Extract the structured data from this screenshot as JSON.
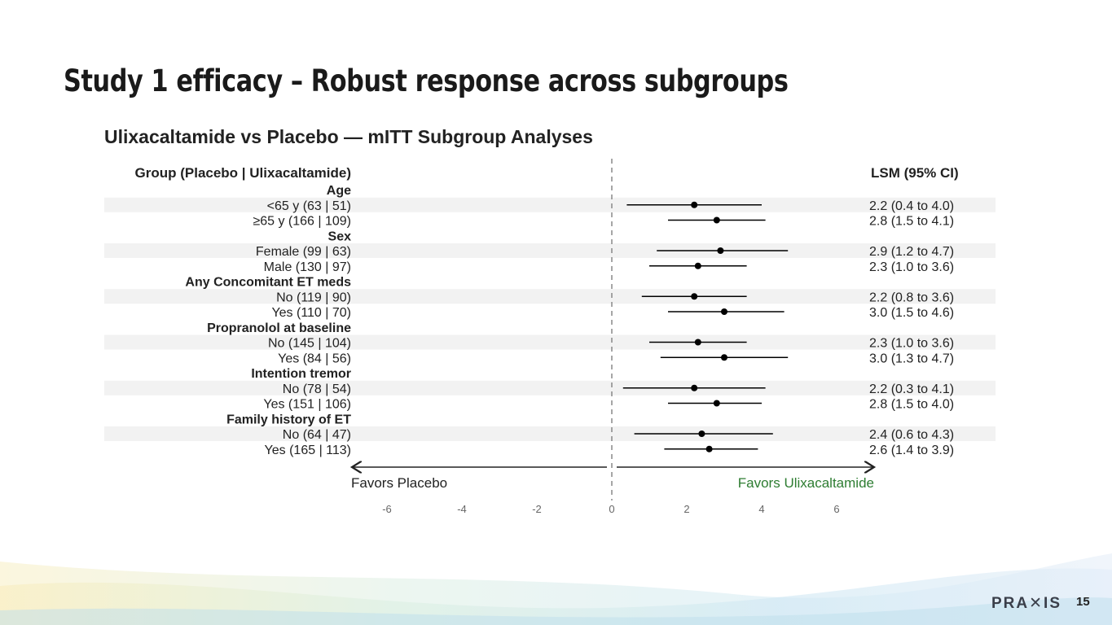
{
  "slide_title": "Study 1 efficacy – Robust response across subgroups",
  "page_number": "15",
  "logo": "PRAXIS",
  "chart_data": {
    "type": "forest",
    "title": "Ulixacaltamide vs Placebo — mITT Subgroup Analyses",
    "left_header": "Group (Placebo | Ulixacaltamide)",
    "right_header": "LSM (95% CI)",
    "xlim": [
      -7,
      7
    ],
    "xticks": [
      "-6",
      "-4",
      "-2",
      "0",
      "2",
      "4",
      "6"
    ],
    "reference_line": 0,
    "favors_left": "Favors Placebo",
    "favors_right": "Favors Ulixacaltamide",
    "colors": {
      "favors_right": "#2e7d32",
      "points": "#000000",
      "stripe": "#f2f2f2"
    },
    "groups": [
      {
        "name": "Age",
        "rows": [
          {
            "label": "<65 y  (63 | 51)",
            "est": 2.2,
            "lo": 0.4,
            "hi": 4.0,
            "ci_text": "2.2 (0.4 to 4.0)"
          },
          {
            "label": "≥65 y  (166 | 109)",
            "est": 2.8,
            "lo": 1.5,
            "hi": 4.1,
            "ci_text": "2.8 (1.5 to 4.1)"
          }
        ]
      },
      {
        "name": "Sex",
        "rows": [
          {
            "label": "Female  (99 | 63)",
            "est": 2.9,
            "lo": 1.2,
            "hi": 4.7,
            "ci_text": "2.9 (1.2 to 4.7)"
          },
          {
            "label": "Male  (130 | 97)",
            "est": 2.3,
            "lo": 1.0,
            "hi": 3.6,
            "ci_text": "2.3 (1.0 to 3.6)"
          }
        ]
      },
      {
        "name": "Any Concomitant ET meds",
        "rows": [
          {
            "label": "No  (119 | 90)",
            "est": 2.2,
            "lo": 0.8,
            "hi": 3.6,
            "ci_text": "2.2 (0.8 to 3.6)"
          },
          {
            "label": "Yes  (110 | 70)",
            "est": 3.0,
            "lo": 1.5,
            "hi": 4.6,
            "ci_text": "3.0 (1.5 to 4.6)"
          }
        ]
      },
      {
        "name": "Propranolol at baseline",
        "rows": [
          {
            "label": "No  (145 | 104)",
            "est": 2.3,
            "lo": 1.0,
            "hi": 3.6,
            "ci_text": "2.3 (1.0 to 3.6)"
          },
          {
            "label": "Yes  (84 | 56)",
            "est": 3.0,
            "lo": 1.3,
            "hi": 4.7,
            "ci_text": "3.0 (1.3 to 4.7)"
          }
        ]
      },
      {
        "name": "Intention tremor",
        "rows": [
          {
            "label": "No  (78 | 54)",
            "est": 2.2,
            "lo": 0.3,
            "hi": 4.1,
            "ci_text": "2.2 (0.3 to 4.1)"
          },
          {
            "label": "Yes  (151 | 106)",
            "est": 2.8,
            "lo": 1.5,
            "hi": 4.0,
            "ci_text": "2.8 (1.5 to 4.0)"
          }
        ]
      },
      {
        "name": "Family history of ET",
        "rows": [
          {
            "label": "No  (64 | 47)",
            "est": 2.4,
            "lo": 0.6,
            "hi": 4.3,
            "ci_text": "2.4 (0.6 to 4.3)"
          },
          {
            "label": "Yes  (165 | 113)",
            "est": 2.6,
            "lo": 1.4,
            "hi": 3.9,
            "ci_text": "2.6 (1.4 to 3.9)"
          }
        ]
      }
    ]
  }
}
